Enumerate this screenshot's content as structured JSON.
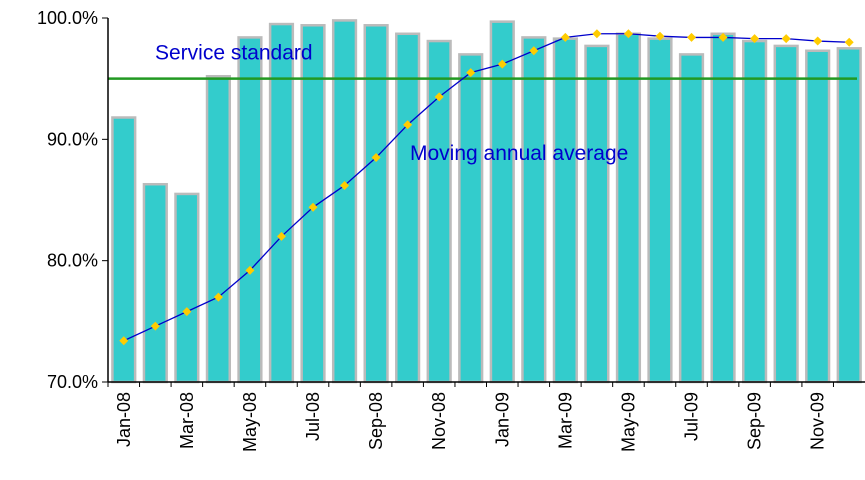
{
  "chart_data": {
    "type": "bar-line",
    "categories": [
      "Jan-08",
      null,
      "Mar-08",
      null,
      "May-08",
      null,
      "Jul-08",
      null,
      "Sep-08",
      null,
      "Nov-08",
      null,
      "Jan-09",
      null,
      "Mar-09",
      null,
      "May-09",
      null,
      "Jul-09",
      null,
      "Sep-09",
      null,
      "Nov-09",
      null
    ],
    "series": [
      {
        "type": "bar",
        "color": "#33cccc",
        "values": [
          91.8,
          86.3,
          85.5,
          95.2,
          98.4,
          99.5,
          99.4,
          99.8,
          99.4,
          98.7,
          98.1,
          97.0,
          99.7,
          98.4,
          98.3,
          97.7,
          98.7,
          98.3,
          97.0,
          98.7,
          98.1,
          97.7,
          97.3,
          97.5
        ]
      },
      {
        "type": "line",
        "name": "Moving annual average",
        "color": "#0000cc",
        "marker_color": "#ffcc00",
        "values": [
          73.4,
          74.6,
          75.8,
          77.0,
          79.2,
          82.0,
          84.4,
          86.2,
          88.5,
          91.2,
          93.5,
          95.5,
          96.2,
          97.3,
          98.4,
          98.7,
          98.7,
          98.5,
          98.4,
          98.4,
          98.3,
          98.3,
          98.1,
          98.0
        ]
      }
    ],
    "reference_line": {
      "value": 95,
      "label": "Service standard",
      "color": "#229922"
    },
    "ylim": [
      70,
      100
    ],
    "yticks": [
      {
        "value": 70,
        "label": "70.0%"
      },
      {
        "value": 80,
        "label": "80.0%"
      },
      {
        "value": 90,
        "label": "90.0%"
      },
      {
        "value": 100,
        "label": "100.0%"
      }
    ],
    "grid": false
  }
}
